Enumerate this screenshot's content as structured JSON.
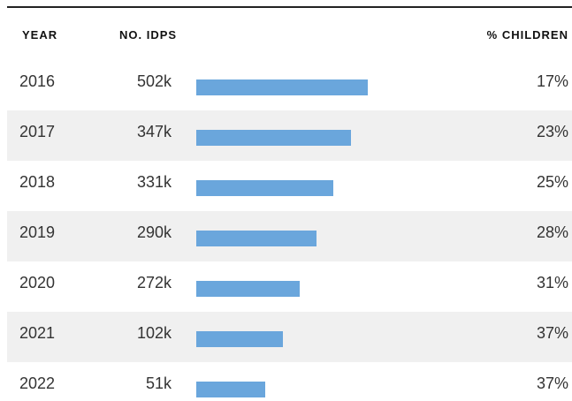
{
  "table": {
    "header": [
      "YEAR",
      "NO. IDPS",
      "% CHILDREN"
    ],
    "rows": [
      [
        "2016",
        "502k",
        "17%"
      ],
      [
        "2017",
        "347k",
        "23%"
      ],
      [
        "2018",
        "331k",
        "25%"
      ],
      [
        "2019",
        "290k",
        "28%"
      ],
      [
        "2020",
        "272k",
        "31%"
      ],
      [
        "2021",
        "102k",
        "37%"
      ],
      [
        "2022",
        "51k",
        "37%"
      ]
    ]
  }
}
